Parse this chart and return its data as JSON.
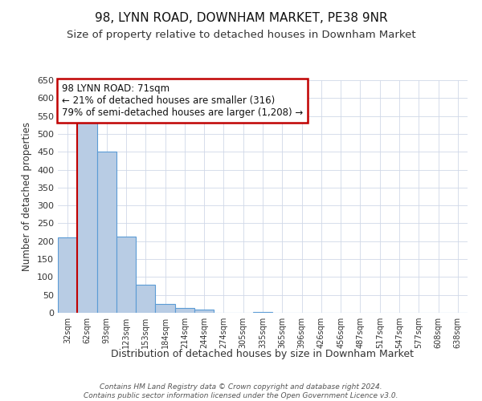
{
  "title": "98, LYNN ROAD, DOWNHAM MARKET, PE38 9NR",
  "subtitle": "Size of property relative to detached houses in Downham Market",
  "xlabel": "Distribution of detached houses by size in Downham Market",
  "ylabel": "Number of detached properties",
  "bar_labels": [
    "32sqm",
    "62sqm",
    "93sqm",
    "123sqm",
    "153sqm",
    "184sqm",
    "214sqm",
    "244sqm",
    "274sqm",
    "305sqm",
    "335sqm",
    "365sqm",
    "396sqm",
    "426sqm",
    "456sqm",
    "487sqm",
    "517sqm",
    "547sqm",
    "577sqm",
    "608sqm",
    "638sqm"
  ],
  "bar_values": [
    210,
    533,
    450,
    213,
    78,
    25,
    14,
    8,
    0,
    0,
    3,
    0,
    0,
    0,
    0,
    1,
    0,
    0,
    0,
    1,
    1
  ],
  "bar_color": "#b8cce4",
  "bar_edge_color": "#5b9bd5",
  "ylim": [
    0,
    650
  ],
  "yticks": [
    0,
    50,
    100,
    150,
    200,
    250,
    300,
    350,
    400,
    450,
    500,
    550,
    600,
    650
  ],
  "vline_x_idx": 0,
  "vline_color": "#c00000",
  "annotation_title": "98 LYNN ROAD: 71sqm",
  "annotation_line1": "← 21% of detached houses are smaller (316)",
  "annotation_line2": "79% of semi-detached houses are larger (1,208) →",
  "annotation_box_color": "#ffffff",
  "annotation_box_edge": "#c00000",
  "footer1": "Contains HM Land Registry data © Crown copyright and database right 2024.",
  "footer2": "Contains public sector information licensed under the Open Government Licence v3.0.",
  "background_color": "#ffffff",
  "grid_color": "#d0d8e8",
  "title_fontsize": 11,
  "subtitle_fontsize": 9.5
}
